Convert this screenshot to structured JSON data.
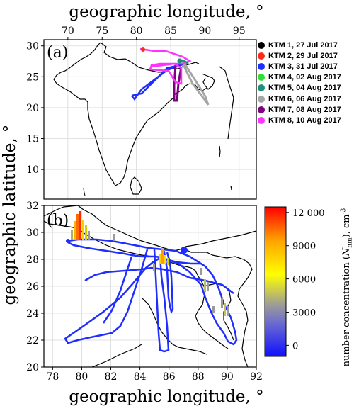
{
  "figure": {
    "top_axis_label": "geographic longitude, °",
    "bottom_axis_label": "geographic longitude, °",
    "y_axis_label": "geographic latitude, °",
    "colorbar_label_prefix": "number concentration (",
    "colorbar_label_N": "N",
    "colorbar_label_sub": "nm",
    "colorbar_label_suffix": "), cm",
    "colorbar_label_sup": "-3"
  },
  "colors": {
    "flight_track": "#1f2dff",
    "coastline": "#000000",
    "grid": "#d9d9d9"
  },
  "chart_data": [
    {
      "type": "map",
      "panel_label": "(a)",
      "x_ticks": [
        "70",
        "75",
        "80",
        "85",
        "90",
        "95"
      ],
      "y_ticks": [
        "10",
        "15",
        "20",
        "25",
        "30"
      ],
      "xlim": [
        66.5,
        97.5
      ],
      "ylim": [
        5.2,
        31
      ],
      "grid": true,
      "legend_position": "right",
      "legend": [
        {
          "label": "KTM 1, 27 Jul 2017",
          "color": "#000000"
        },
        {
          "label": "KTM 2, 29 Jul 2017",
          "color": "#ff2a1a"
        },
        {
          "label": "KTM 3, 31 Jul 2017",
          "color": "#1f2dff"
        },
        {
          "label": "KTM 4, 02 Aug 2017",
          "color": "#33dd33"
        },
        {
          "label": "KTM 5, 04 Aug 2017",
          "color": "#1f8f7a"
        },
        {
          "label": "KTM 6, 06 Aug 2017",
          "color": "#a6a6a6"
        },
        {
          "label": "KTM 7, 08 Aug 2017",
          "color": "#800080"
        },
        {
          "label": "KTM 8, 10 Aug 2017",
          "color": "#ff33ff"
        }
      ]
    },
    {
      "type": "map",
      "panel_label": "(b)",
      "x_ticks": [
        "78",
        "80",
        "82",
        "84",
        "86",
        "88",
        "90",
        "92"
      ],
      "y_ticks": [
        "20",
        "22",
        "24",
        "26",
        "28",
        "30",
        "32"
      ],
      "xlim": [
        77.4,
        92
      ],
      "ylim": [
        20,
        32
      ],
      "grid": true,
      "colorbar": {
        "ticks": [
          "12 000",
          "9000",
          "6000",
          "3000",
          "0"
        ],
        "range": [
          -1000,
          12500
        ],
        "colors": [
          "#1010ff",
          "#6a6ad0",
          "#9a9a9a",
          "#ffff00",
          "#ffa000",
          "#ff0000"
        ]
      }
    }
  ]
}
